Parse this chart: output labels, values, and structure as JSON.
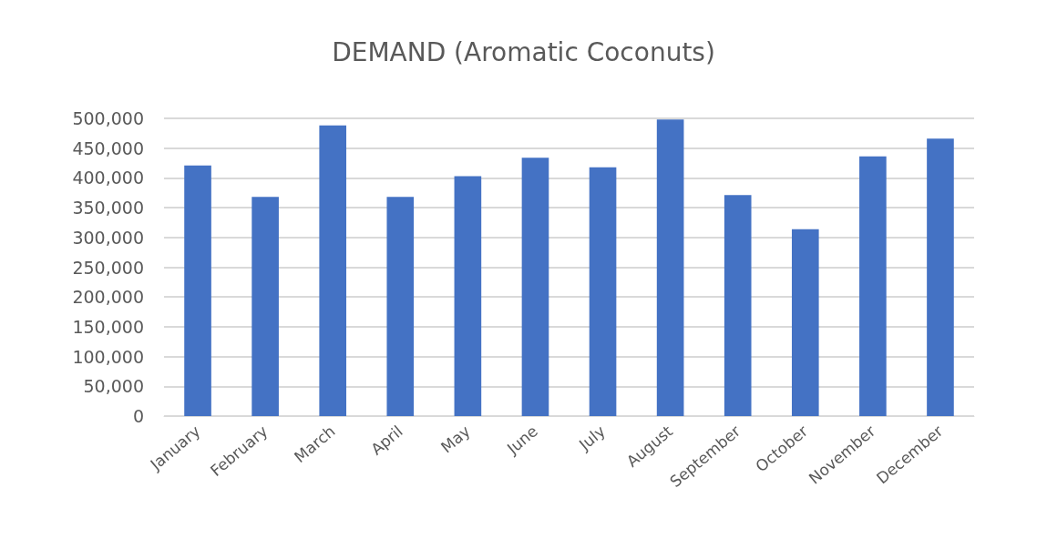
{
  "chart_data": {
    "type": "bar",
    "title": "DEMAND (Aromatic Coconuts)",
    "categories": [
      "January",
      "February",
      "March",
      "April",
      "May",
      "June",
      "July",
      "August",
      "September",
      "October",
      "November",
      "December"
    ],
    "values": [
      421000,
      368000,
      488000,
      368000,
      403000,
      434000,
      418000,
      498000,
      371000,
      314000,
      436000,
      466000
    ],
    "color": "#4472c4",
    "ylim": [
      0,
      500000
    ],
    "yticks": [
      0,
      {
        "value": 50000,
        "label": "50,000"
      },
      {
        "value": 100000,
        "label": "100,000"
      },
      {
        "value": 150000,
        "label": "150,000"
      },
      {
        "value": 200000,
        "label": "200,000"
      },
      {
        "value": 250000,
        "label": "250,000"
      },
      {
        "value": 300000,
        "label": "300,000"
      },
      {
        "value": 350000,
        "label": "350,000"
      },
      {
        "value": 400000,
        "label": "400,000"
      },
      {
        "value": 450000,
        "label": "450,000"
      },
      {
        "value": 500000,
        "label": "500,000"
      }
    ],
    "grid": "y"
  }
}
